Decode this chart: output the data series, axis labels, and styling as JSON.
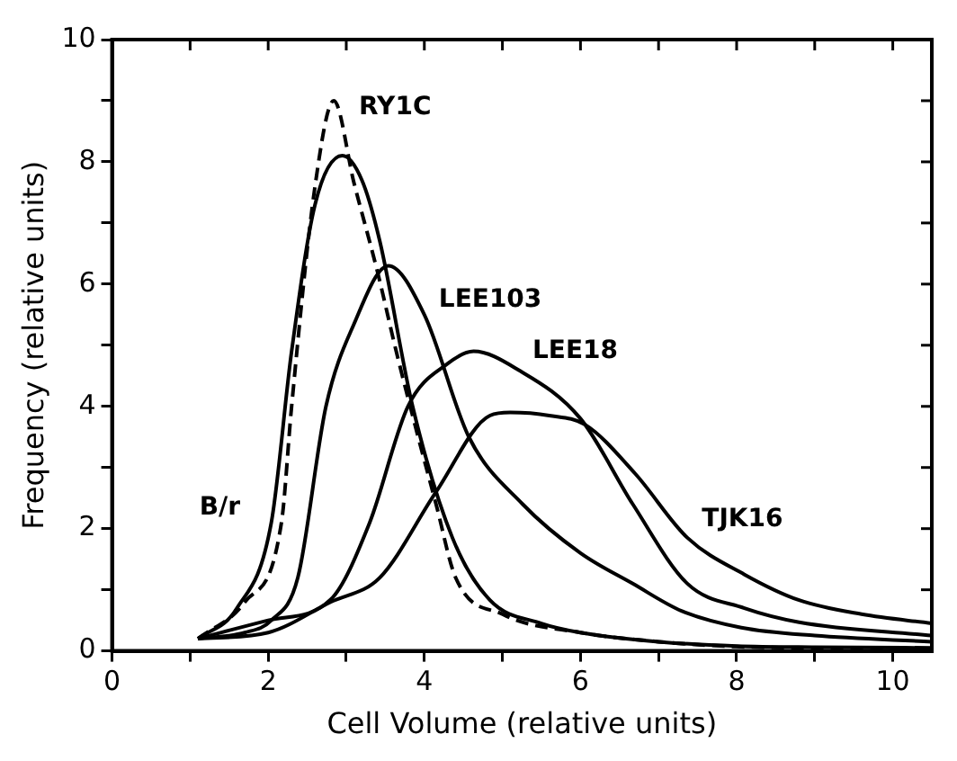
{
  "chart_data": {
    "type": "line",
    "xlabel": "Cell Volume (relative units)",
    "ylabel": "Frequency (relative units)",
    "xlim": [
      0,
      10.5
    ],
    "ylim": [
      0,
      10
    ],
    "xticks": [
      0,
      {
        "value": 1,
        "label": null
      },
      2,
      {
        "value": 3,
        "label": null
      },
      4,
      {
        "value": 5,
        "label": null
      },
      6,
      {
        "value": 7,
        "label": null
      },
      8,
      {
        "value": 9,
        "label": null
      },
      10
    ],
    "yticks": [
      0,
      {
        "value": 1,
        "label": null
      },
      2,
      {
        "value": 3,
        "label": null
      },
      4,
      {
        "value": 5,
        "label": null
      },
      6,
      {
        "value": 7,
        "label": null
      },
      8,
      {
        "value": 9,
        "label": null
      },
      10
    ],
    "grid": false,
    "legend": false,
    "marker": "none",
    "series": [
      {
        "name": "RY1C",
        "color": "#000000",
        "line_style": "dashed",
        "x": [
          1.1,
          1.7,
          2.17,
          2.3,
          2.6,
          2.84,
          3.1,
          3.4,
          3.64,
          3.9,
          4.15,
          4.4,
          5,
          6,
          7,
          8,
          9,
          10.5
        ],
        "values": [
          0.2,
          0.8,
          2.1,
          4.0,
          7.6,
          9.0,
          7.65,
          6.2,
          4.9,
          3.6,
          2.4,
          1.2,
          0.6,
          0.3,
          0.15,
          0.07,
          0.05,
          0.03
        ]
      },
      {
        "name": "B/r",
        "color": "#000000",
        "line_style": "solid",
        "x": [
          1.1,
          1.6,
          2.04,
          2.3,
          2.6,
          2.95,
          3.2,
          3.43,
          3.85,
          4.36,
          4.84,
          5.5,
          6,
          7,
          8,
          9,
          10.5
        ],
        "values": [
          0.2,
          0.7,
          2.1,
          4.9,
          7.3,
          8.1,
          7.7,
          6.7,
          4.0,
          1.85,
          0.83,
          0.45,
          0.3,
          0.15,
          0.08,
          0.06,
          0.05
        ]
      },
      {
        "name": "LEE103",
        "color": "#000000",
        "line_style": "solid",
        "x": [
          1.1,
          1.7,
          2.04,
          2.38,
          2.74,
          3.1,
          3.54,
          4.0,
          4.57,
          5.26,
          6,
          6.67,
          7.3,
          8.06,
          9,
          10.5
        ],
        "values": [
          0.2,
          0.3,
          0.5,
          1.2,
          4.0,
          5.35,
          6.3,
          5.5,
          3.5,
          2.4,
          1.6,
          1.1,
          0.65,
          0.38,
          0.25,
          0.15
        ]
      },
      {
        "name": "LEE18",
        "color": "#000000",
        "line_style": "solid",
        "x": [
          1.1,
          2,
          2.8,
          3.3,
          3.79,
          4.3,
          4.63,
          5.2,
          6,
          6.67,
          7.37,
          8.1,
          8.8,
          10.5
        ],
        "values": [
          0.2,
          0.5,
          0.84,
          2.1,
          4.0,
          4.7,
          4.9,
          4.6,
          3.8,
          2.4,
          1.1,
          0.7,
          0.47,
          0.25
        ]
      },
      {
        "name": "TJK16",
        "color": "#000000",
        "line_style": "solid",
        "x": [
          1.1,
          2,
          2.8,
          3.43,
          4.15,
          4.84,
          5.1,
          5.6,
          6.06,
          6.7,
          7.37,
          8.1,
          8.8,
          9.6,
          10.5
        ],
        "values": [
          0.2,
          0.3,
          0.8,
          1.2,
          2.6,
          3.85,
          3.9,
          3.85,
          3.7,
          2.9,
          1.85,
          1.25,
          0.83,
          0.6,
          0.45
        ]
      }
    ]
  }
}
